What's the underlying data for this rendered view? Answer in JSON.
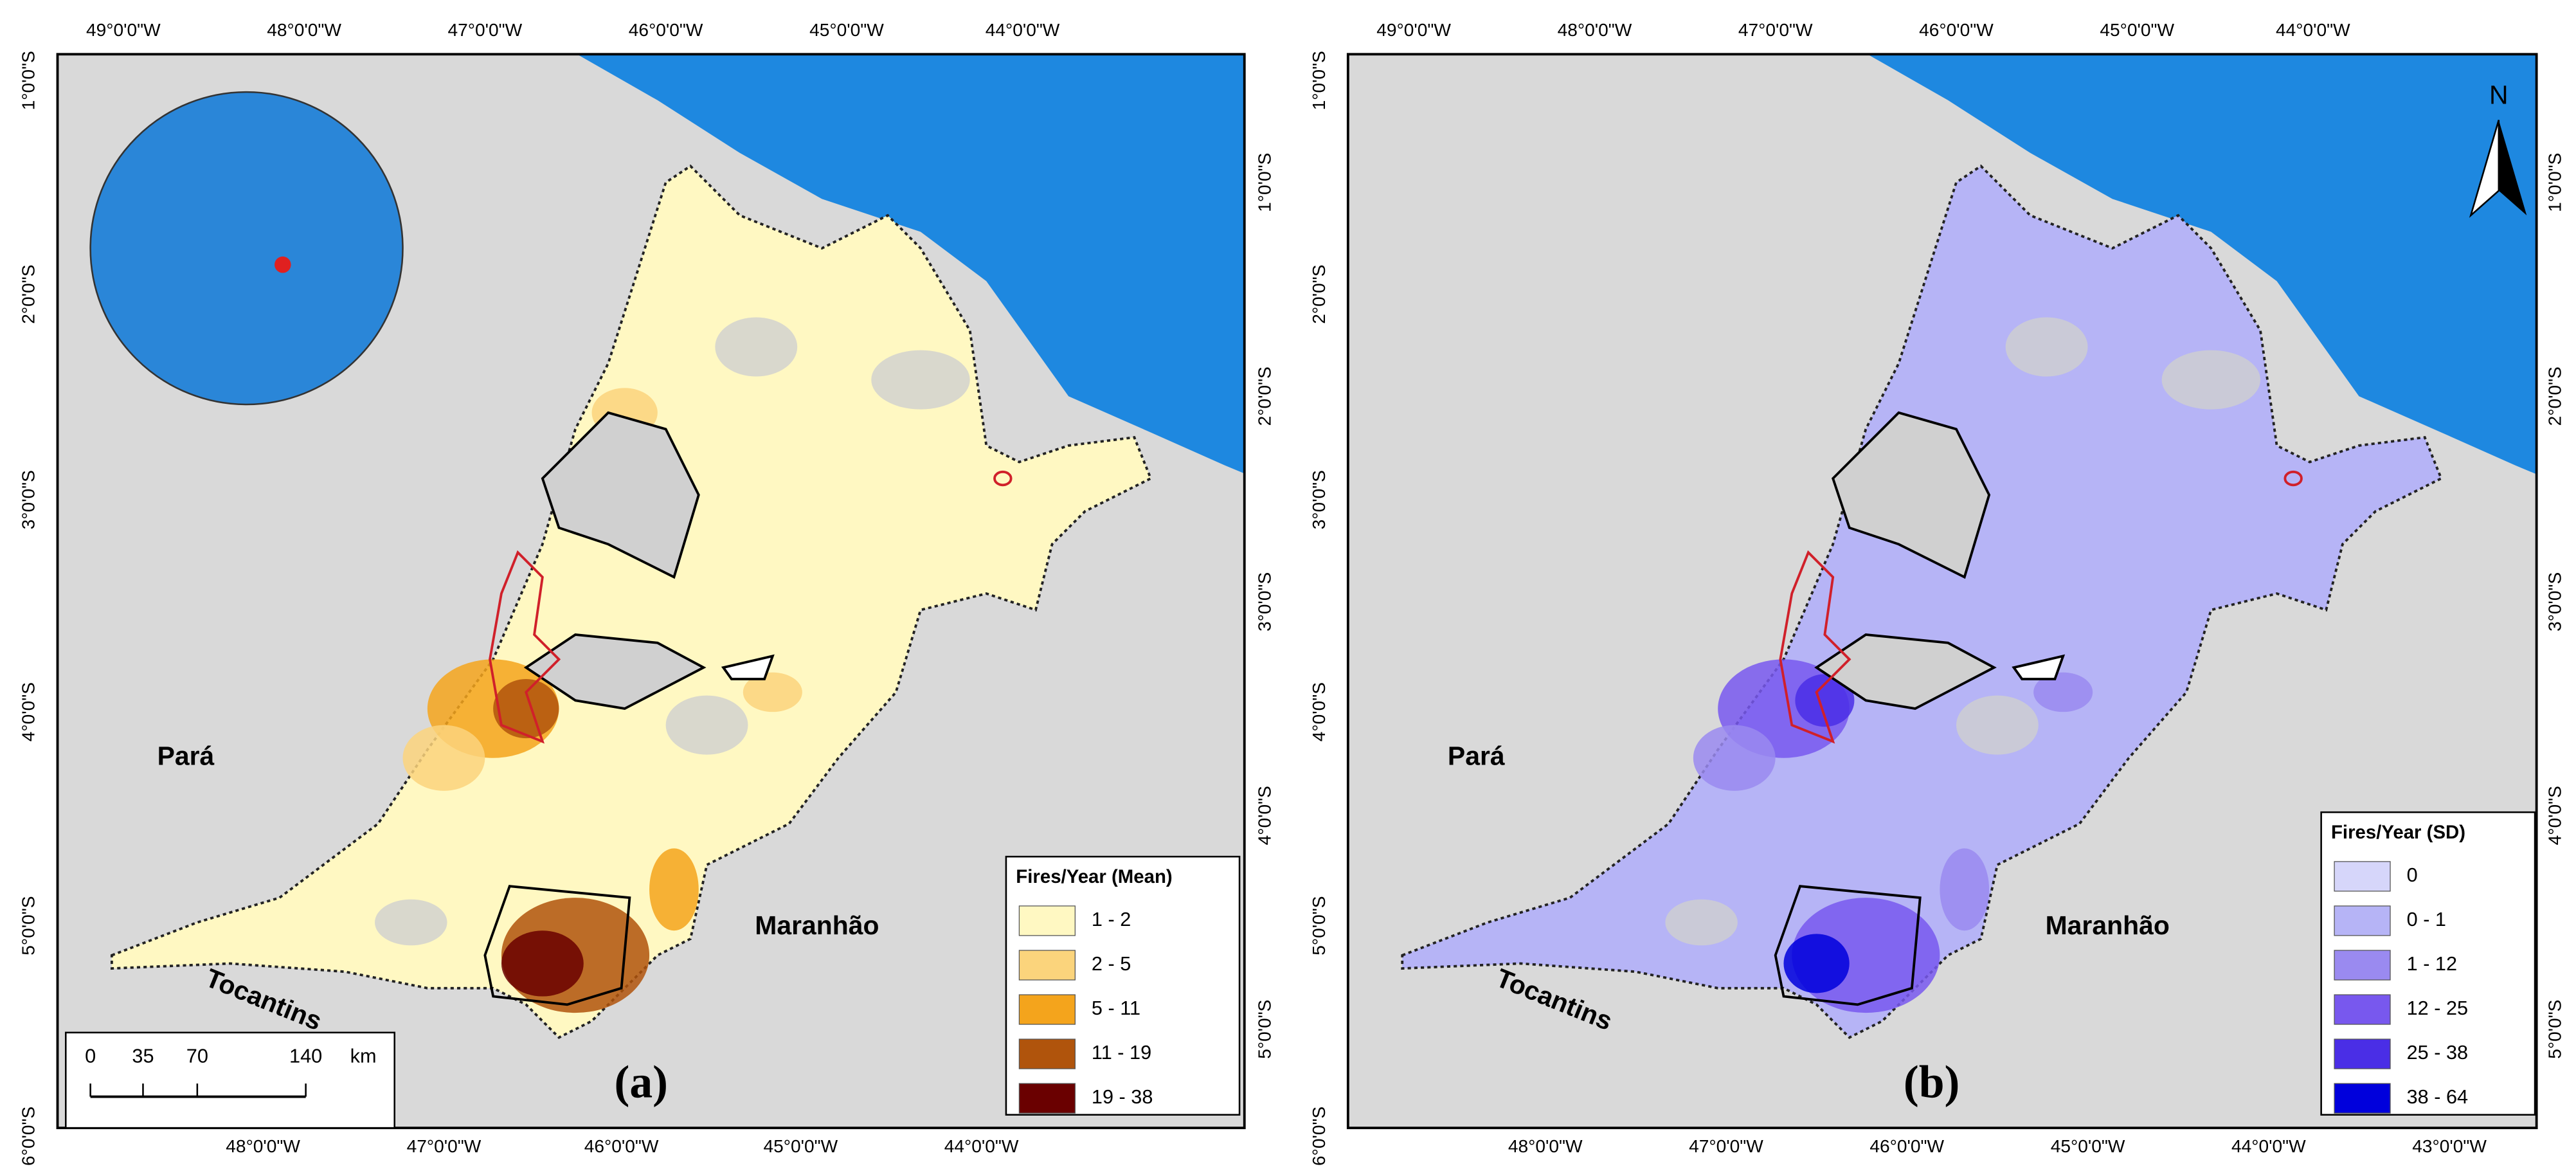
{
  "panels": [
    {
      "label": "(a)",
      "top_axis": [
        "49°0'0\"W",
        "48°0'0\"W",
        "47°0'0\"W",
        "46°0'0\"W",
        "45°0'0\"W",
        "44°0'0\"W"
      ],
      "bottom_axis": [
        "48°0'0\"W",
        "47°0'0\"W",
        "46°0'0\"W",
        "45°0'0\"W",
        "44°0'0\"W"
      ],
      "left_axis": [
        "1°0'0\"S",
        "2°0'0\"S",
        "3°0'0\"S",
        "4°0'0\"S",
        "5°0'0\"S",
        "6°0'0\"S"
      ],
      "right_axis": [
        "1°0'0\"S",
        "2°0'0\"S",
        "3°0'0\"S",
        "4°0'0\"S",
        "5°0'0\"S"
      ],
      "places": [
        "Pará",
        "Maranhão",
        "Tocantins"
      ],
      "legend": {
        "title": "Fires/Year (Mean)",
        "entries": [
          {
            "label": "1 - 2",
            "color": "#fff8c2"
          },
          {
            "label": "2 - 5",
            "color": "#fbd47c"
          },
          {
            "label": "5 - 11",
            "color": "#f4a41c"
          },
          {
            "label": "11 - 19",
            "color": "#b0540c"
          },
          {
            "label": "19 - 38",
            "color": "#6a0000"
          }
        ]
      }
    },
    {
      "label": "(b)",
      "top_axis": [
        "49°0'0\"W",
        "48°0'0\"W",
        "47°0'0\"W",
        "46°0'0\"W",
        "45°0'0\"W",
        "44°0'0\"W"
      ],
      "bottom_axis": [
        "48°0'0\"W",
        "47°0'0\"W",
        "46°0'0\"W",
        "45°0'0\"W",
        "44°0'0\"W",
        "43°0'0\"W"
      ],
      "left_axis": [
        "1°0'0\"S",
        "2°0'0\"S",
        "3°0'0\"S",
        "4°0'0\"S",
        "5°0'0\"S",
        "6°0'0\"S"
      ],
      "right_axis": [
        "1°0'0\"S",
        "2°0'0\"S",
        "3°0'0\"S",
        "4°0'0\"S",
        "5°0'0\"S"
      ],
      "places": [
        "Pará",
        "Maranhão",
        "Tocantins"
      ],
      "legend": {
        "title": "Fires/Year (SD)",
        "entries": [
          {
            "label": "0",
            "color": "#d6d6fa"
          },
          {
            "label": "0 - 1",
            "color": "#b6b4f6"
          },
          {
            "label": "1 - 12",
            "color": "#9a8af0"
          },
          {
            "label": "12 - 25",
            "color": "#7858ee"
          },
          {
            "label": "25 - 38",
            "color": "#4a2ee6"
          },
          {
            "label": "38 - 64",
            "color": "#0000dc"
          }
        ]
      }
    }
  ],
  "scale_bar": {
    "labels": [
      "0",
      "35",
      "70",
      "140"
    ],
    "unit": "km"
  },
  "north_arrow": "N"
}
